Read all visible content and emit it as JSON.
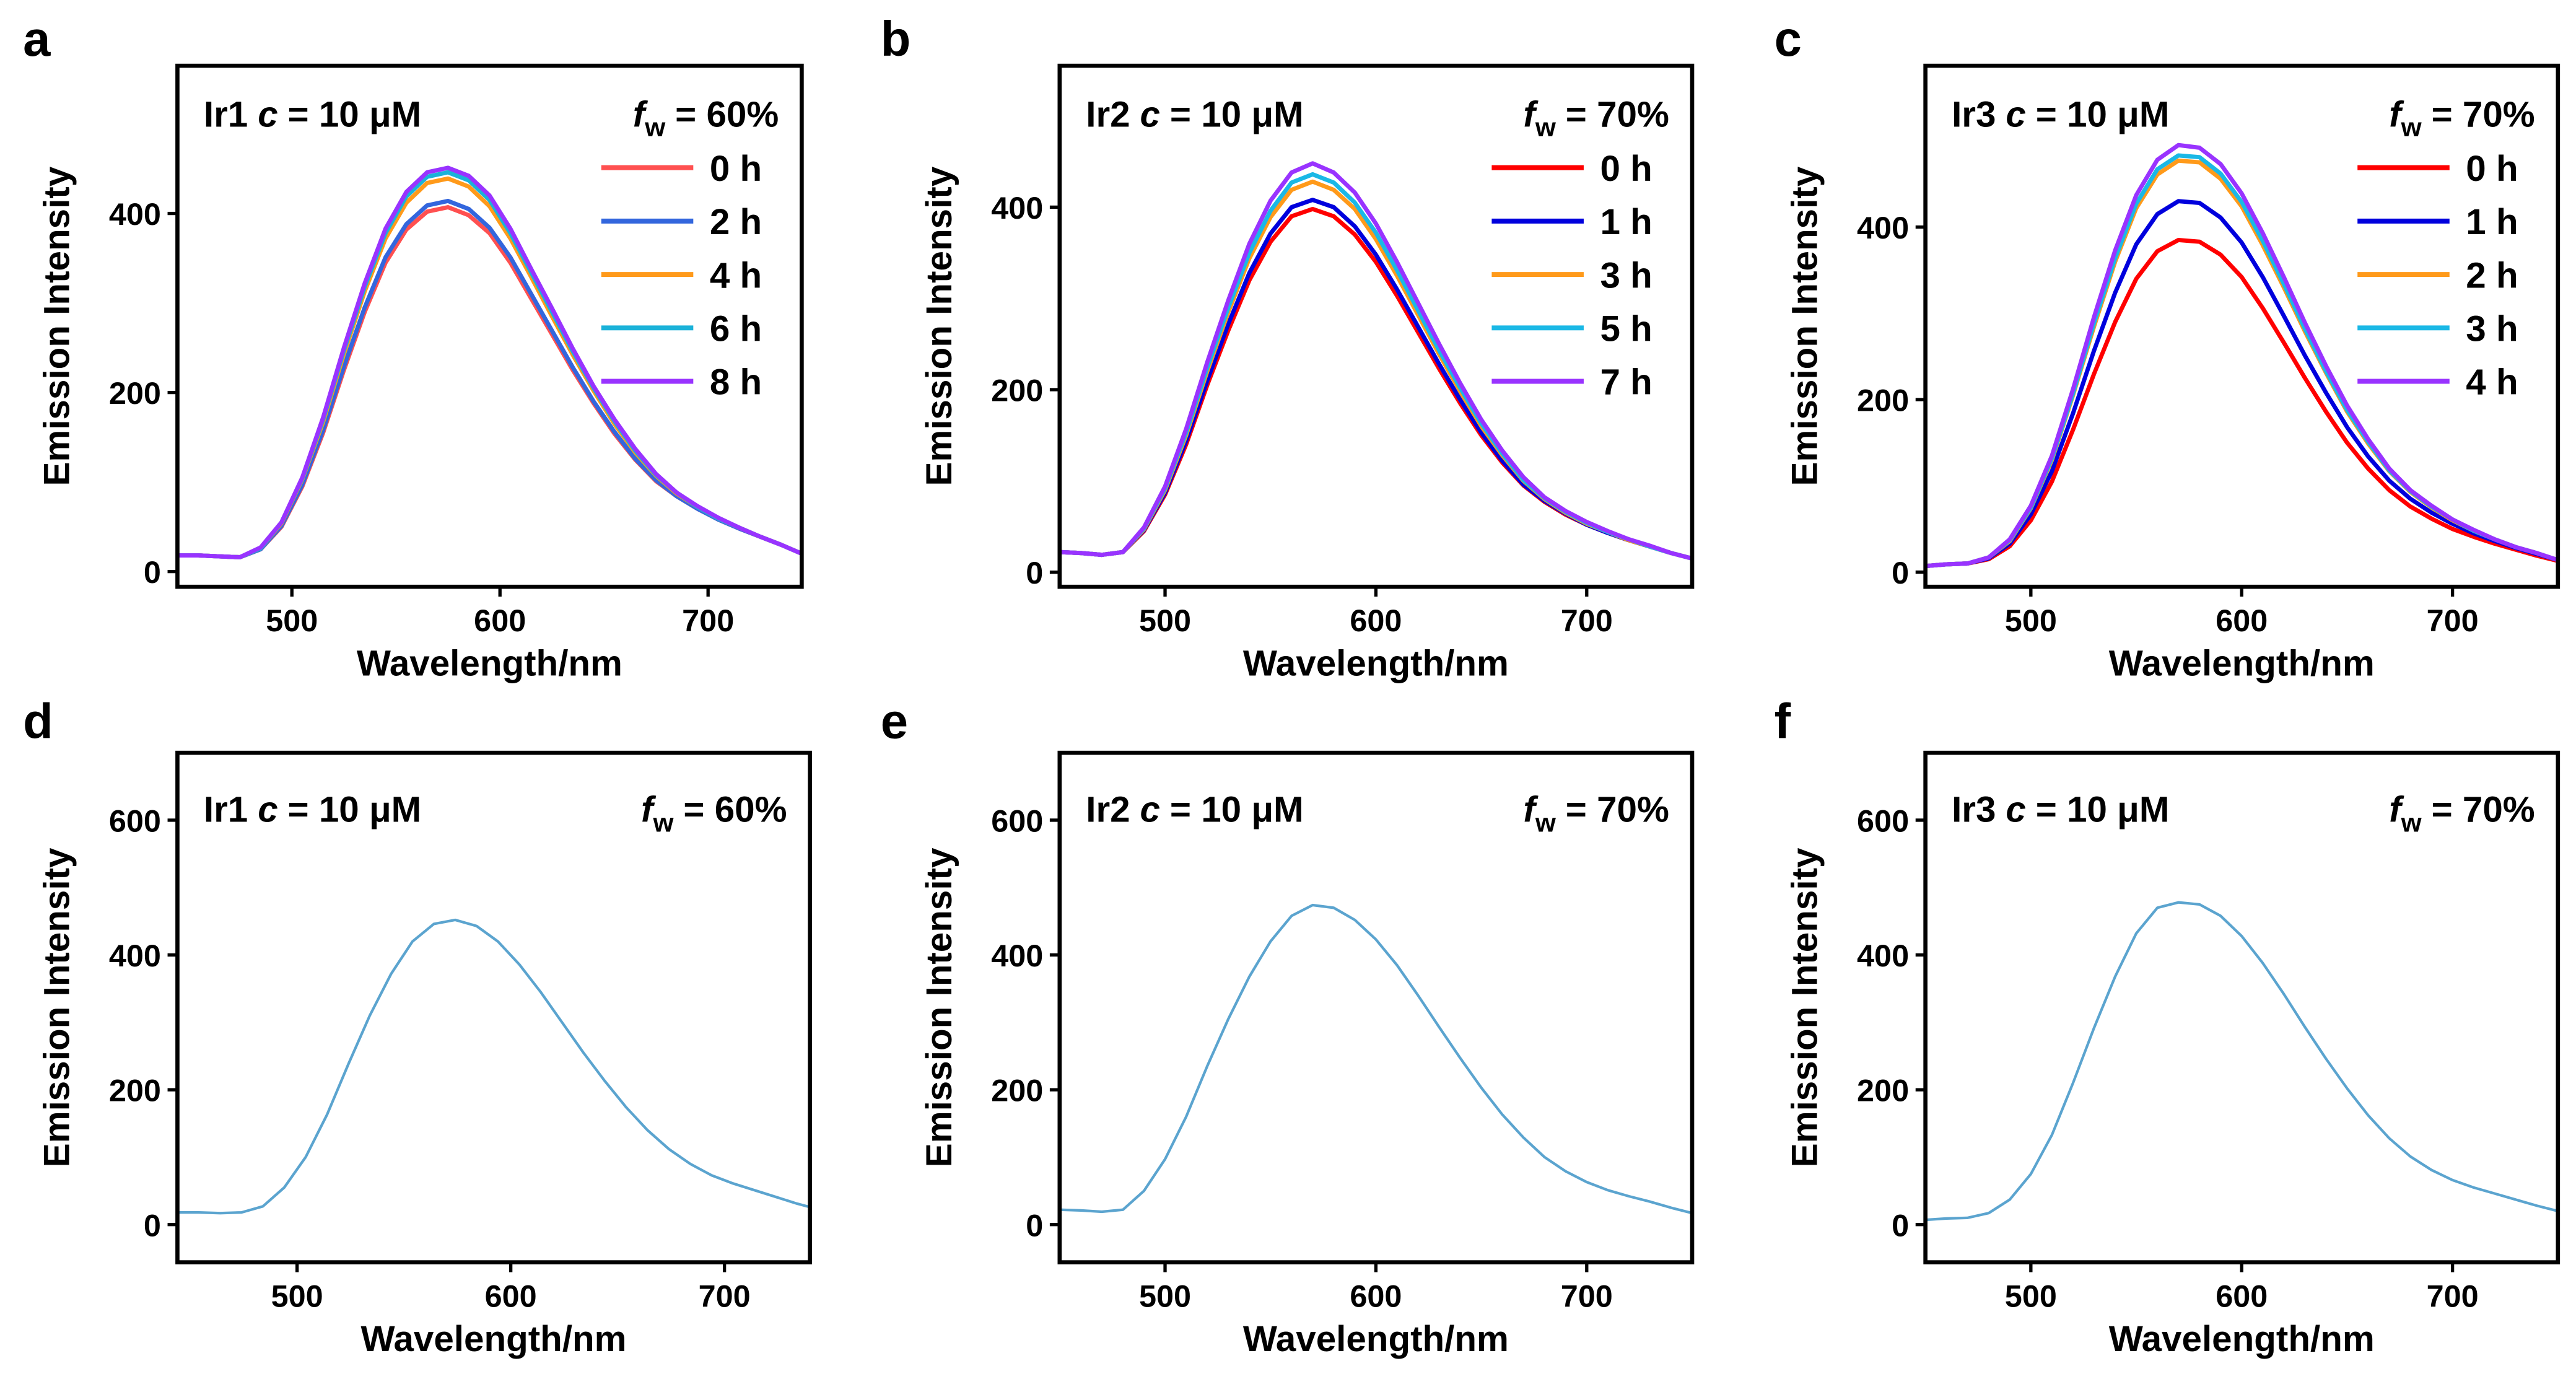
{
  "chart_data": [
    {
      "type": "line",
      "panel": "a",
      "xlabel": "Wavelength/nm",
      "ylabel": "Emission Intensity",
      "annotation": {
        "sample": [
          "Ir1",
          "c",
          "= 10 μM"
        ],
        "fraction": [
          "f",
          "w",
          "= 60%"
        ]
      },
      "xlim": [
        445,
        745
      ],
      "ylim": [
        -17,
        565
      ],
      "xticks": [
        500,
        600,
        700
      ],
      "yticks": [
        0,
        200,
        400
      ],
      "x": [
        445,
        455,
        465,
        475,
        485,
        495,
        505,
        515,
        525,
        535,
        545,
        555,
        565,
        575,
        585,
        595,
        605,
        615,
        625,
        635,
        645,
        655,
        665,
        675,
        685,
        695,
        705,
        715,
        725,
        735,
        745
      ],
      "series": [
        {
          "name": "0 h",
          "color": "#ff5050",
          "values": [
            18,
            18,
            17,
            16,
            25,
            50,
            95,
            155,
            225,
            290,
            345,
            382,
            402,
            407,
            398,
            378,
            345,
            305,
            265,
            225,
            188,
            154,
            125,
            101,
            84,
            70,
            58,
            48,
            39,
            30,
            20
          ]
        },
        {
          "name": "2 h",
          "color": "#3366dd",
          "values": [
            18,
            18,
            17,
            16,
            25,
            51,
            97,
            158,
            229,
            295,
            351,
            388,
            409,
            414,
            405,
            384,
            351,
            310,
            269,
            228,
            190,
            156,
            126,
            102,
            84,
            70,
            58,
            48,
            39,
            30,
            20
          ]
        },
        {
          "name": "4 h",
          "color": "#ff9a1a",
          "values": [
            18,
            18,
            17,
            16,
            26,
            54,
            103,
            167,
            243,
            313,
            372,
            412,
            434,
            439,
            430,
            408,
            372,
            329,
            285,
            242,
            202,
            165,
            133,
            107,
            87,
            72,
            59,
            49,
            39,
            30,
            20
          ]
        },
        {
          "name": "6 h",
          "color": "#1ab2d9",
          "values": [
            18,
            18,
            17,
            16,
            26,
            55,
            104,
            170,
            247,
            318,
            378,
            419,
            441,
            446,
            437,
            415,
            378,
            334,
            290,
            246,
            205,
            168,
            135,
            108,
            88,
            72,
            59,
            49,
            39,
            30,
            20
          ]
        },
        {
          "name": "8 h",
          "color": "#9933ff",
          "values": [
            18,
            18,
            17,
            16,
            27,
            55,
            105,
            172,
            250,
            322,
            383,
            424,
            446,
            451,
            442,
            420,
            383,
            338,
            294,
            249,
            207,
            170,
            137,
            109,
            88,
            73,
            60,
            49,
            39,
            30,
            20
          ]
        }
      ]
    },
    {
      "type": "line",
      "panel": "b",
      "xlabel": "Wavelength/nm",
      "ylabel": "Emission Intensity",
      "annotation": {
        "sample": [
          "Ir2",
          "c",
          "= 10 μM"
        ],
        "fraction": [
          "f",
          "w",
          "= 70%"
        ]
      },
      "xlim": [
        450,
        750
      ],
      "ylim": [
        -16,
        555
      ],
      "xticks": [
        500,
        600,
        700
      ],
      "yticks": [
        0,
        200,
        400
      ],
      "x": [
        450,
        460,
        470,
        480,
        490,
        500,
        510,
        520,
        530,
        540,
        550,
        560,
        570,
        580,
        590,
        600,
        610,
        620,
        630,
        640,
        650,
        660,
        670,
        680,
        690,
        700,
        710,
        720,
        730,
        740,
        750
      ],
      "series": [
        {
          "name": "0 h",
          "color": "#ff0000",
          "values": [
            22,
            21,
            19,
            22,
            45,
            85,
            140,
            205,
            265,
            320,
            362,
            390,
            398,
            390,
            370,
            340,
            303,
            263,
            223,
            185,
            150,
            120,
            95,
            77,
            63,
            52,
            43,
            35,
            28,
            21,
            15
          ]
        },
        {
          "name": "1 h",
          "color": "#0000dd",
          "values": [
            22,
            21,
            19,
            22,
            46,
            87,
            144,
            210,
            272,
            328,
            371,
            400,
            408,
            400,
            379,
            348,
            310,
            269,
            228,
            189,
            153,
            122,
            96,
            78,
            64,
            52,
            43,
            35,
            28,
            21,
            15
          ]
        },
        {
          "name": "3 h",
          "color": "#ff9a1a",
          "values": [
            22,
            21,
            19,
            22,
            47,
            90,
            150,
            220,
            285,
            344,
            389,
            419,
            428,
            419,
            398,
            365,
            325,
            282,
            239,
            198,
            160,
            128,
            100,
            80,
            65,
            53,
            44,
            35,
            28,
            21,
            15
          ]
        },
        {
          "name": "5 h",
          "color": "#1ab8e6",
          "values": [
            22,
            21,
            19,
            22,
            48,
            92,
            153,
            224,
            290,
            350,
            396,
            427,
            436,
            427,
            405,
            372,
            331,
            287,
            243,
            202,
            163,
            130,
            101,
            81,
            66,
            54,
            44,
            36,
            28,
            21,
            15
          ]
        },
        {
          "name": "7 h",
          "color": "#9933ff",
          "values": [
            22,
            21,
            19,
            22,
            49,
            94,
            157,
            230,
            298,
            360,
            407,
            438,
            448,
            438,
            416,
            382,
            340,
            295,
            250,
            207,
            167,
            133,
            104,
            82,
            67,
            55,
            45,
            36,
            29,
            21,
            15
          ]
        }
      ]
    },
    {
      "type": "line",
      "panel": "c",
      "xlabel": "Wavelength/nm",
      "ylabel": "Emission Intensity",
      "annotation": {
        "sample": [
          "Ir3",
          "c",
          "= 10 μM"
        ],
        "fraction": [
          "f",
          "w",
          "= 70%"
        ]
      },
      "xlim": [
        450,
        750
      ],
      "ylim": [
        -17,
        587
      ],
      "xticks": [
        500,
        600,
        700
      ],
      "yticks": [
        0,
        200,
        400
      ],
      "x": [
        450,
        460,
        470,
        480,
        490,
        500,
        510,
        520,
        530,
        540,
        550,
        560,
        570,
        580,
        590,
        600,
        610,
        620,
        630,
        640,
        650,
        660,
        670,
        680,
        690,
        700,
        710,
        720,
        730,
        740,
        750
      ],
      "series": [
        {
          "name": "0 h",
          "color": "#ff0000",
          "values": [
            7,
            9,
            10,
            15,
            30,
            60,
            105,
            165,
            230,
            290,
            340,
            372,
            385,
            383,
            368,
            342,
            306,
            266,
            225,
            186,
            150,
            120,
            95,
            76,
            62,
            50,
            41,
            33,
            26,
            19,
            13
          ]
        },
        {
          "name": "1 h",
          "color": "#0000dd",
          "values": [
            7,
            9,
            10,
            16,
            33,
            67,
            117,
            184,
            257,
            324,
            380,
            415,
            430,
            428,
            411,
            382,
            342,
            297,
            251,
            208,
            168,
            134,
            106,
            85,
            69,
            56,
            45,
            36,
            28,
            21,
            14
          ]
        },
        {
          "name": "2 h",
          "color": "#ff9a1a",
          "values": [
            7,
            9,
            10,
            17,
            36,
            74,
            130,
            205,
            285,
            360,
            422,
            461,
            477,
            475,
            456,
            424,
            379,
            330,
            279,
            231,
            186,
            149,
            117,
            93,
            75,
            60,
            48,
            38,
            29,
            22,
            14
          ]
        },
        {
          "name": "3 h",
          "color": "#1ab8e6",
          "values": [
            7,
            9,
            10,
            17,
            37,
            75,
            132,
            207,
            289,
            364,
            427,
            467,
            483,
            481,
            462,
            429,
            384,
            334,
            282,
            233,
            188,
            151,
            118,
            94,
            76,
            61,
            48,
            38,
            29,
            22,
            14
          ]
        },
        {
          "name": "4 h",
          "color": "#9933ff",
          "values": [
            7,
            9,
            10,
            17,
            38,
            77,
            135,
            212,
            296,
            373,
            437,
            478,
            495,
            492,
            473,
            439,
            393,
            342,
            289,
            239,
            193,
            154,
            120,
            95,
            77,
            61,
            49,
            38,
            29,
            22,
            14
          ]
        }
      ]
    },
    {
      "type": "line",
      "panel": "d",
      "xlabel": "Wavelength/nm",
      "ylabel": "Emission Intensity",
      "annotation": {
        "sample": [
          "Ir1",
          "c",
          "= 10 μM"
        ],
        "fraction": [
          "f",
          "w",
          "= 60%"
        ]
      },
      "xlim": [
        444,
        740
      ],
      "ylim": [
        -56,
        700
      ],
      "xticks": [
        500,
        600,
        700
      ],
      "yticks": [
        0,
        200,
        400,
        600
      ],
      "x": [
        444,
        454,
        464,
        474,
        484,
        494,
        504,
        514,
        524,
        534,
        544,
        554,
        564,
        574,
        584,
        594,
        604,
        614,
        624,
        634,
        644,
        654,
        664,
        674,
        684,
        694,
        704,
        714,
        724,
        734,
        740
      ],
      "color": "#5ba4cf",
      "values": [
        18,
        18,
        17,
        18,
        27,
        55,
        100,
        163,
        238,
        310,
        372,
        420,
        446,
        452,
        443,
        420,
        386,
        345,
        300,
        255,
        213,
        174,
        140,
        112,
        90,
        73,
        61,
        51,
        41,
        31,
        26
      ]
    },
    {
      "type": "line",
      "panel": "e",
      "xlabel": "Wavelength/nm",
      "ylabel": "Emission Intensity",
      "annotation": {
        "sample": [
          "Ir2",
          "c",
          "= 10 μM"
        ],
        "fraction": [
          "f",
          "w",
          "= 70%"
        ]
      },
      "xlim": [
        450,
        750
      ],
      "ylim": [
        -56,
        700
      ],
      "xticks": [
        500,
        600,
        700
      ],
      "yticks": [
        0,
        200,
        400,
        600
      ],
      "x": [
        450,
        460,
        470,
        480,
        490,
        500,
        510,
        520,
        530,
        540,
        550,
        560,
        570,
        580,
        590,
        600,
        610,
        620,
        630,
        640,
        650,
        660,
        670,
        680,
        690,
        700,
        710,
        720,
        730,
        740,
        750
      ],
      "color": "#5ba4cf",
      "values": [
        22,
        21,
        19,
        22,
        50,
        97,
        160,
        235,
        305,
        368,
        420,
        458,
        474,
        470,
        452,
        423,
        385,
        340,
        293,
        247,
        203,
        163,
        129,
        100,
        79,
        63,
        51,
        42,
        34,
        25,
        17
      ]
    },
    {
      "type": "line",
      "panel": "f",
      "xlabel": "Wavelength/nm",
      "ylabel": "Emission Intensity",
      "annotation": {
        "sample": [
          "Ir3",
          "c",
          "= 10 μM"
        ],
        "fraction": [
          "f",
          "w",
          "= 70%"
        ]
      },
      "xlim": [
        450,
        750
      ],
      "ylim": [
        -56,
        700
      ],
      "xticks": [
        500,
        600,
        700
      ],
      "yticks": [
        0,
        200,
        400,
        600
      ],
      "x": [
        450,
        460,
        470,
        480,
        490,
        500,
        510,
        520,
        530,
        540,
        550,
        560,
        570,
        580,
        590,
        600,
        610,
        620,
        630,
        640,
        650,
        660,
        670,
        680,
        690,
        700,
        710,
        720,
        730,
        740,
        750
      ],
      "color": "#5ba4cf",
      "values": [
        7,
        9,
        10,
        17,
        37,
        75,
        133,
        210,
        292,
        368,
        432,
        470,
        478,
        475,
        458,
        428,
        388,
        342,
        293,
        246,
        202,
        162,
        128,
        101,
        81,
        66,
        55,
        46,
        37,
        28,
        20
      ]
    }
  ]
}
